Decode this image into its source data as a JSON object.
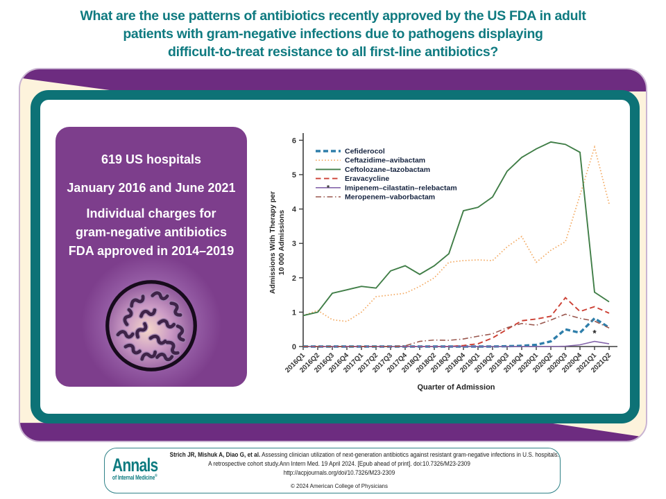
{
  "title": {
    "lines": [
      "What are the use patterns of antibiotics recently approved by the US FDA in adult",
      "patients with gram-negative infections due to pathogens displaying",
      "difficult-to-treat resistance to all first-line antibiotics?"
    ]
  },
  "info_panel": {
    "line1": "619 US hospitals",
    "line2": "January 2016 and June 2021",
    "line3_lines": [
      "Individual charges for",
      "gram-negative antibiotics",
      "FDA approved in 2014–2019"
    ]
  },
  "chart_data": {
    "type": "line",
    "xlabel": "Quarter of Admission",
    "ylabel": "Admissions With Therapy per 10 000 Admissions",
    "ylabel_lines": [
      "Admissions With Therapy per",
      "10 000 Admissions"
    ],
    "ylim": [
      0,
      6
    ],
    "yticks": [
      0,
      1,
      2,
      3,
      4,
      5,
      6
    ],
    "grid": false,
    "legend_position": "top-left",
    "categories": [
      "2016Q1",
      "2016Q2",
      "2016Q3",
      "2016Q4",
      "2017Q1",
      "2017Q2",
      "2017Q3",
      "2017Q4",
      "2018Q1",
      "2018Q2",
      "2018Q3",
      "2018Q4",
      "2019Q1",
      "2019Q2",
      "2019Q3",
      "2019Q4",
      "2020Q1",
      "2020Q2",
      "2020Q3",
      "2020Q4",
      "2021Q1",
      "2021Q2"
    ],
    "series": [
      {
        "name": "Cefiderocol",
        "color": "#2e7eaa",
        "style": "dashed-bold",
        "values": [
          0,
          0,
          0,
          0,
          0,
          0,
          0,
          0,
          0,
          0,
          0,
          0,
          0,
          0,
          0.01,
          0.02,
          0.05,
          0.15,
          0.5,
          0.4,
          0.82,
          0.55
        ]
      },
      {
        "name": "Ceftazidime–avibactam",
        "color": "#f3a961",
        "style": "dotted",
        "values": [
          0.9,
          1.05,
          0.78,
          0.73,
          1.0,
          1.45,
          1.5,
          1.55,
          1.75,
          2.0,
          2.45,
          2.5,
          2.52,
          2.5,
          2.9,
          3.2,
          2.45,
          2.8,
          3.05,
          4.4,
          5.8,
          4.15
        ]
      },
      {
        "name": "Ceftolozane–tazobactam",
        "color": "#3f7d46",
        "style": "solid",
        "values": [
          0.9,
          1.0,
          1.55,
          1.65,
          1.75,
          1.7,
          2.2,
          2.35,
          2.1,
          2.35,
          2.7,
          3.95,
          4.05,
          4.35,
          5.1,
          5.5,
          5.75,
          5.95,
          5.88,
          5.65,
          1.58,
          1.3
        ]
      },
      {
        "name": "Eravacycline",
        "color": "#cc3f33",
        "style": "dashed",
        "values": [
          0,
          0,
          0,
          0,
          0,
          0,
          0,
          0,
          0,
          0,
          0,
          0.03,
          0.08,
          0.25,
          0.5,
          0.75,
          0.8,
          0.88,
          1.42,
          1.02,
          1.16,
          0.97
        ]
      },
      {
        "name": "Imipenem–cilastatin–relebactam",
        "color": "#8465ab",
        "style": "solid-star",
        "values": [
          0,
          0,
          0,
          0,
          0,
          0,
          0,
          0,
          0,
          0,
          0,
          0,
          0,
          0,
          0,
          0,
          0,
          0,
          0.01,
          0.05,
          0.15,
          0.08
        ]
      },
      {
        "name": "Meropenem–vaborbactam",
        "color": "#99564d",
        "style": "dashdot",
        "values": [
          0,
          0,
          0,
          0,
          0,
          0,
          0,
          0.02,
          0.15,
          0.19,
          0.18,
          0.22,
          0.3,
          0.37,
          0.55,
          0.67,
          0.62,
          0.77,
          0.94,
          0.82,
          0.74,
          0.54
        ]
      }
    ],
    "annotation": {
      "text": "*",
      "series": "Imipenem–cilastatin–relebactam",
      "x": "2021Q1"
    }
  },
  "citation": {
    "logo_title": "Annals",
    "logo_subtitle": "of Internal Medicine",
    "logo_registered": "®",
    "line1_bold": "Strich JR, Mishuk A, Diao G, et al.",
    "line1_rest": " Assessing clinician utilization of next-generation antibiotics against resistant gram-negative infections in U.S. hospitals.",
    "line2": "A retrospective cohort study.Ann Intern Med. 19 April 2024. [Epub ahead of print]. doi:10.7326/M23-2309",
    "line3": "http://acpjournals.org/doi/10.7326/M23-2309",
    "copyright": "© 2024 American College of Physicians"
  }
}
